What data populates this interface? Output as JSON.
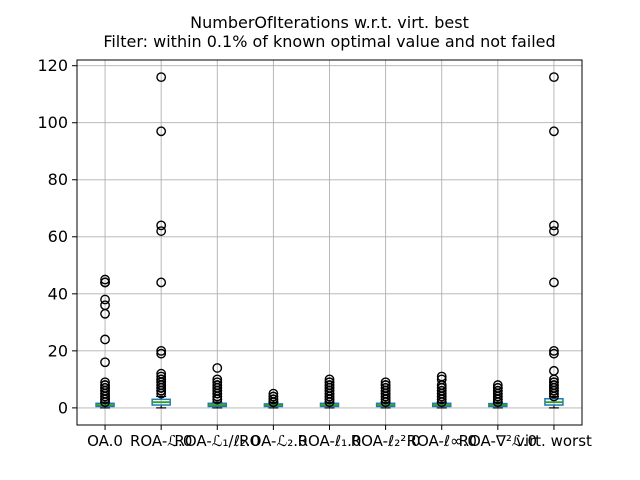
{
  "chart_data": {
    "type": "boxplot",
    "title": "NumberOfIterations w.r.t. virt. best",
    "subtitle": "Filter: within 0.1% of known optimal value and not failed",
    "xlabel": "",
    "ylabel": "",
    "ylim": [
      -6,
      122
    ],
    "yticks": [
      0,
      20,
      40,
      60,
      80,
      100,
      120
    ],
    "grid": true,
    "legend": null,
    "colors": {
      "box": "#2077b4",
      "median": "#2ca02c",
      "whisker": "#000000",
      "cap": "#000000",
      "flier": "#000000",
      "gridline": "#b0b0b0",
      "frame": "#000000",
      "background": "#ffffff"
    },
    "categories": [
      "OA.0",
      "ROA-ℒ.0",
      "ROA-ℒ₁/ℓ₂.0",
      "ROA-ℒ₂.0",
      "ROA-ℓ₁.0",
      "ROA-ℓ₂².0",
      "ROA-ℓ∞.0",
      "ROA-∇²ℒ.0",
      "virt. worst"
    ],
    "boxes": [
      {
        "label": "OA.0",
        "whislo": 0,
        "q1": 0.5,
        "med": 1,
        "q3": 1.6,
        "whishi": 2,
        "fliers": [
          45,
          44,
          44,
          38,
          36,
          33,
          24,
          16,
          9,
          8,
          8,
          7,
          7,
          6,
          6,
          5,
          5,
          4,
          4,
          3,
          3,
          2
        ]
      },
      {
        "label": "ROA-ℒ.0",
        "whislo": 0,
        "q1": 1.0,
        "med": 2,
        "q3": 3.0,
        "whishi": 4,
        "fliers": [
          116,
          97,
          64,
          62,
          44,
          20,
          19,
          12,
          11,
          10,
          10,
          9,
          9,
          8,
          8,
          7,
          7,
          6,
          6,
          5
        ]
      },
      {
        "label": "ROA-ℒ₁/ℓ₂.0",
        "whislo": 0,
        "q1": 0.5,
        "med": 1,
        "q3": 1.6,
        "whishi": 2,
        "fliers": [
          14,
          10,
          9,
          8,
          8,
          7,
          7,
          6,
          6,
          5,
          5,
          4,
          4,
          3,
          3
        ]
      },
      {
        "label": "ROA-ℒ₂.0",
        "whislo": 0,
        "q1": 0.5,
        "med": 1,
        "q3": 1.4,
        "whishi": 2,
        "fliers": [
          5,
          4,
          4,
          3,
          3,
          2,
          2
        ]
      },
      {
        "label": "ROA-ℓ₁.0",
        "whislo": 0,
        "q1": 0.5,
        "med": 1,
        "q3": 1.6,
        "whishi": 2,
        "fliers": [
          10,
          9,
          9,
          8,
          8,
          7,
          7,
          6,
          6,
          5,
          5,
          4,
          4,
          3,
          3,
          2
        ]
      },
      {
        "label": "ROA-ℓ₂².0",
        "whislo": 0,
        "q1": 0.5,
        "med": 1,
        "q3": 1.6,
        "whishi": 2,
        "fliers": [
          9,
          8,
          8,
          7,
          7,
          6,
          6,
          5,
          5,
          4,
          4,
          3,
          3,
          2
        ]
      },
      {
        "label": "ROA-ℓ∞.0",
        "whislo": 0,
        "q1": 0.5,
        "med": 1,
        "q3": 1.6,
        "whishi": 2,
        "fliers": [
          11,
          10,
          8,
          8,
          7,
          7,
          6,
          6,
          5,
          5,
          4,
          4,
          3,
          3,
          2
        ]
      },
      {
        "label": "ROA-∇²ℒ.0",
        "whislo": 0,
        "q1": 0.5,
        "med": 1,
        "q3": 1.5,
        "whishi": 2,
        "fliers": [
          8,
          7,
          7,
          6,
          6,
          5,
          5,
          4,
          4,
          3,
          3,
          2
        ]
      },
      {
        "label": "virt. worst",
        "whislo": 0,
        "q1": 1.0,
        "med": 2,
        "q3": 3.2,
        "whishi": 4,
        "fliers": [
          116,
          97,
          64,
          62,
          44,
          20,
          19,
          13,
          10,
          9,
          9,
          8,
          8,
          7,
          7,
          6,
          6,
          5,
          5,
          4
        ]
      }
    ]
  }
}
